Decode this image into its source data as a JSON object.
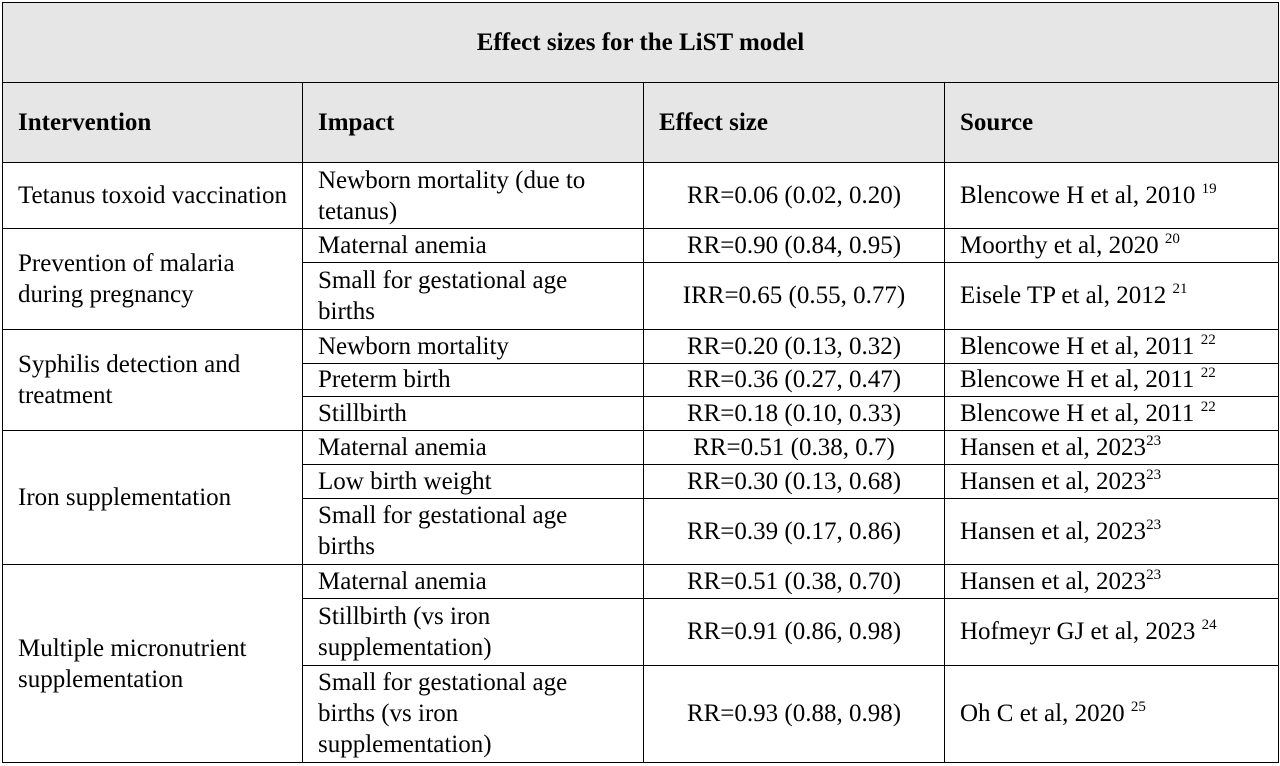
{
  "title": "Effect sizes for the LiST model",
  "headers": {
    "intervention": "Intervention",
    "impact": "Impact",
    "effect_size": "Effect size",
    "source": "Source"
  },
  "rows": [
    {
      "intervention": "Tetanus toxoid vaccination",
      "impact": "Newborn mortality (due to tetanus)",
      "effect": "RR=0.06 (0.02, 0.20)",
      "source": "Blencowe H et al, 2010 ",
      "ref": "19"
    },
    {
      "intervention": "Prevention of malaria during pregnancy",
      "impact": "Maternal anemia",
      "effect": "RR=0.90 (0.84, 0.95)",
      "source": "Moorthy et al, 2020 ",
      "ref": "20"
    },
    {
      "impact": "Small for gestational age births",
      "effect": "IRR=0.65 (0.55, 0.77)",
      "source": "Eisele TP et al, 2012 ",
      "ref": "21"
    },
    {
      "intervention": "Syphilis detection and treatment",
      "impact": "Newborn mortality",
      "effect": "RR=0.20 (0.13, 0.32)",
      "source": "Blencowe H et al, 2011 ",
      "ref": "22"
    },
    {
      "impact": "Preterm birth",
      "effect": "RR=0.36 (0.27, 0.47)",
      "source": "Blencowe H et al, 2011 ",
      "ref": "22"
    },
    {
      "impact": "Stillbirth",
      "effect": "RR=0.18 (0.10, 0.33)",
      "source": "Blencowe H et al, 2011 ",
      "ref": "22"
    },
    {
      "intervention": "Iron supplementation",
      "impact": "Maternal anemia",
      "effect": "RR=0.51 (0.38, 0.7)",
      "source": "Hansen et al, 2023",
      "ref": "23"
    },
    {
      "impact": "Low birth weight",
      "effect": "RR=0.30 (0.13, 0.68)",
      "source": "Hansen et al, 2023",
      "ref": "23"
    },
    {
      "impact": "Small for gestational age births",
      "effect": "RR=0.39 (0.17, 0.86)",
      "source": "Hansen et al, 2023",
      "ref": "23"
    },
    {
      "intervention": "Multiple micronutrient supplementation",
      "impact": "Maternal anemia",
      "effect": "RR=0.51 (0.38, 0.70)",
      "source": "Hansen et al, 2023",
      "ref": "23"
    },
    {
      "impact": "Stillbirth (vs iron supplementation)",
      "effect": "RR=0.91 (0.86, 0.98)",
      "source": "Hofmeyr GJ et al, 2023 ",
      "ref": "24"
    },
    {
      "impact": "Small for gestational age births (vs iron supplementation)",
      "effect": "RR=0.93 (0.88, 0.98)",
      "source": "Oh C et al, 2020 ",
      "ref": "25"
    }
  ]
}
